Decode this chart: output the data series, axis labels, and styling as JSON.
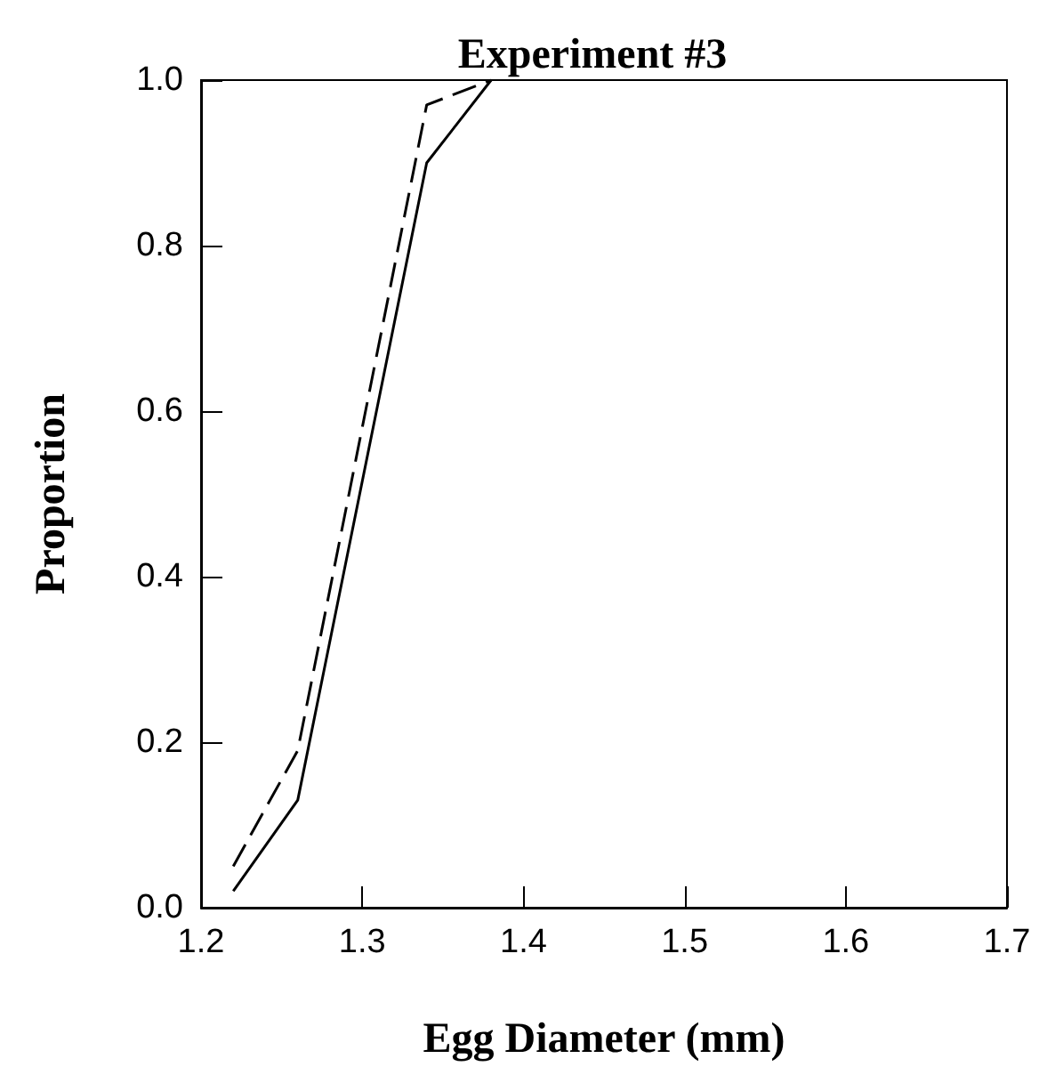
{
  "chart_data": {
    "type": "line",
    "title": "Experiment #3",
    "xlabel": "Egg Diameter (mm)",
    "ylabel": "Proportion",
    "x": [
      1.22,
      1.26,
      1.34,
      1.38
    ],
    "series": [
      {
        "color": "#000000",
        "line_style": "solid",
        "values": [
          0.02,
          0.13,
          0.9,
          1.0
        ]
      },
      {
        "color": "#000000",
        "line_style": "dashed",
        "values": [
          0.05,
          0.19,
          0.97,
          1.0
        ]
      }
    ],
    "xlim": [
      1.2,
      1.7
    ],
    "xticks": [
      1.2,
      1.3,
      1.4,
      1.5,
      1.6,
      1.7
    ],
    "ylim": [
      0,
      1
    ],
    "yticks": [
      {
        "value": 0,
        "label": "0.0"
      },
      {
        "value": 0.2,
        "label": "0.2"
      },
      {
        "value": 0.4,
        "label": "0.4"
      },
      {
        "value": 0.6,
        "label": "0.6"
      },
      {
        "value": 0.8,
        "label": "0.8"
      },
      {
        "value": 1,
        "label": "1.0"
      }
    ],
    "grid": false,
    "marker": "none"
  }
}
